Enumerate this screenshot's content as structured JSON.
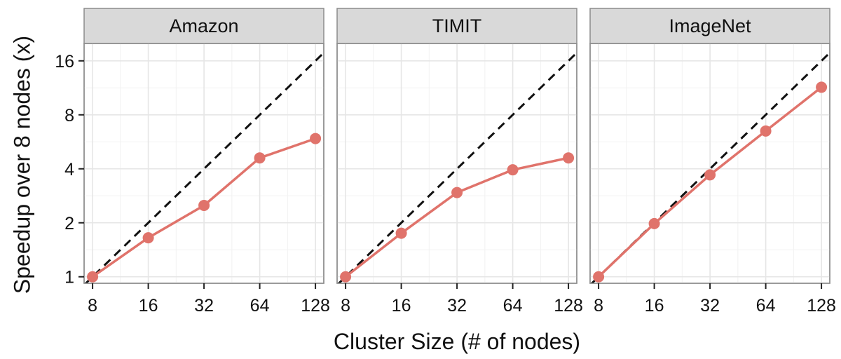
{
  "chart_data": {
    "type": "line",
    "xlabel": "Cluster Size (# of nodes)",
    "ylabel": "Speedup over 8 nodes (x)",
    "x_scale": "log2",
    "y_scale": "log2",
    "x_ticks": [
      8,
      16,
      32,
      64,
      128
    ],
    "y_ticks": [
      1,
      2,
      4,
      8,
      16
    ],
    "xlim": [
      7.2,
      142
    ],
    "ylim": [
      0.92,
      20
    ],
    "grid": true,
    "reference_line": "ideal linear speedup (dashed)",
    "series_color": "#e0736b",
    "reference_color": "#111111",
    "panels": [
      {
        "title": "Amazon",
        "x": [
          8,
          16,
          32,
          64,
          128
        ],
        "y": [
          1.0,
          1.65,
          2.5,
          4.6,
          5.9
        ]
      },
      {
        "title": "TIMIT",
        "x": [
          8,
          16,
          32,
          64,
          128
        ],
        "y": [
          1.0,
          1.75,
          2.95,
          3.95,
          4.6
        ]
      },
      {
        "title": "ImageNet",
        "x": [
          8,
          16,
          32,
          64,
          128
        ],
        "y": [
          1.0,
          1.98,
          3.7,
          6.5,
          11.4
        ]
      }
    ]
  }
}
